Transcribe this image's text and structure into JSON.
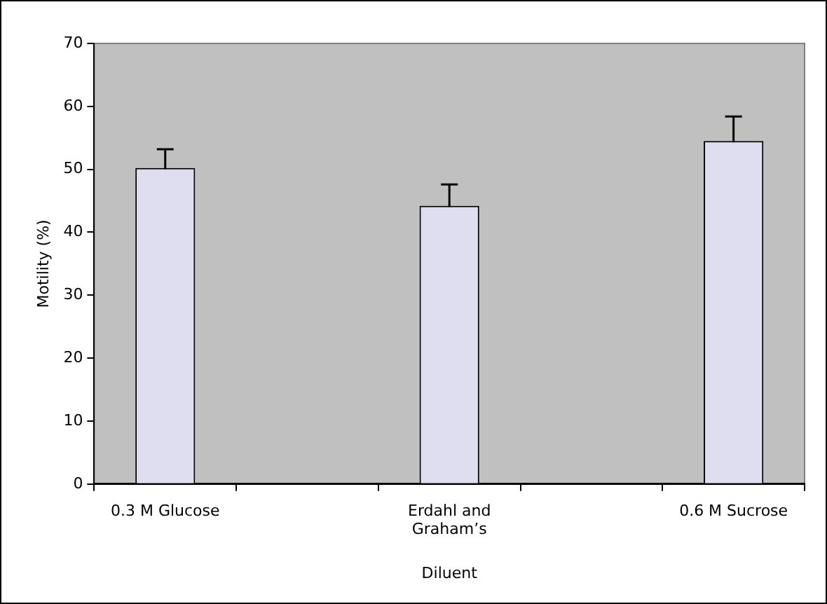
{
  "chart_data": {
    "type": "bar",
    "xlabel": "Diluent",
    "ylabel": "Motility (%)",
    "categories": [
      "0.3 M Glucose",
      null,
      "Erdahl and Graham’s",
      null,
      "0.6 M Sucrose"
    ],
    "values": [
      50.2,
      null,
      44.2,
      null,
      54.5
    ],
    "errors": [
      3.0,
      null,
      3.4,
      null,
      3.9
    ],
    "color": "#dedef0",
    "ylim": [
      0,
      70
    ],
    "yticks": [
      0,
      10,
      20,
      30,
      40,
      50,
      60,
      70
    ],
    "grid": false,
    "legend": false
  }
}
